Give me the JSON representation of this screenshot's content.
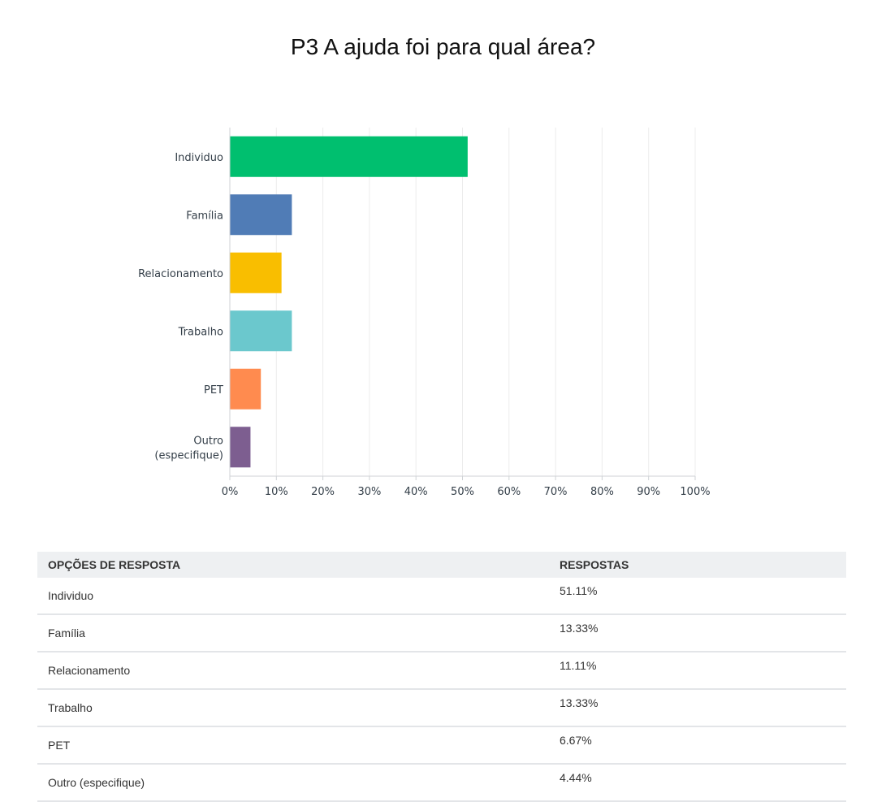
{
  "chart_data": {
    "type": "bar",
    "orientation": "horizontal",
    "title": "P3 A ajuda foi para qual área?",
    "categories": [
      "Individuo",
      "Família",
      "Relacionamento",
      "Trabalho",
      "PET",
      "Outro (especifique)"
    ],
    "category_label_lines": [
      [
        "Individuo"
      ],
      [
        "Família"
      ],
      [
        "Relacionamento"
      ],
      [
        "Trabalho"
      ],
      [
        "PET"
      ],
      [
        "Outro",
        "(especifique)"
      ]
    ],
    "values": [
      51.11,
      13.33,
      11.11,
      13.33,
      6.67,
      4.44
    ],
    "colors": [
      "#00bf6f",
      "#507cb6",
      "#f9be00",
      "#6bc8cd",
      "#ff8b4f",
      "#7d5e90"
    ],
    "xlim": [
      0,
      100
    ],
    "ticks": [
      "0%",
      "10%",
      "20%",
      "30%",
      "40%",
      "50%",
      "60%",
      "70%",
      "80%",
      "90%",
      "100%"
    ],
    "grid": true
  },
  "table": {
    "headers": [
      "OPÇÕES DE RESPOSTA",
      "RESPOSTAS"
    ],
    "rows": [
      {
        "option": "Individuo",
        "value": "51.11%"
      },
      {
        "option": "Família",
        "value": "13.33%"
      },
      {
        "option": "Relacionamento",
        "value": "11.11%"
      },
      {
        "option": "Trabalho",
        "value": "13.33%"
      },
      {
        "option": "PET",
        "value": "6.67%"
      },
      {
        "option": "Outro (especifique)",
        "value": "4.44%"
      }
    ]
  }
}
